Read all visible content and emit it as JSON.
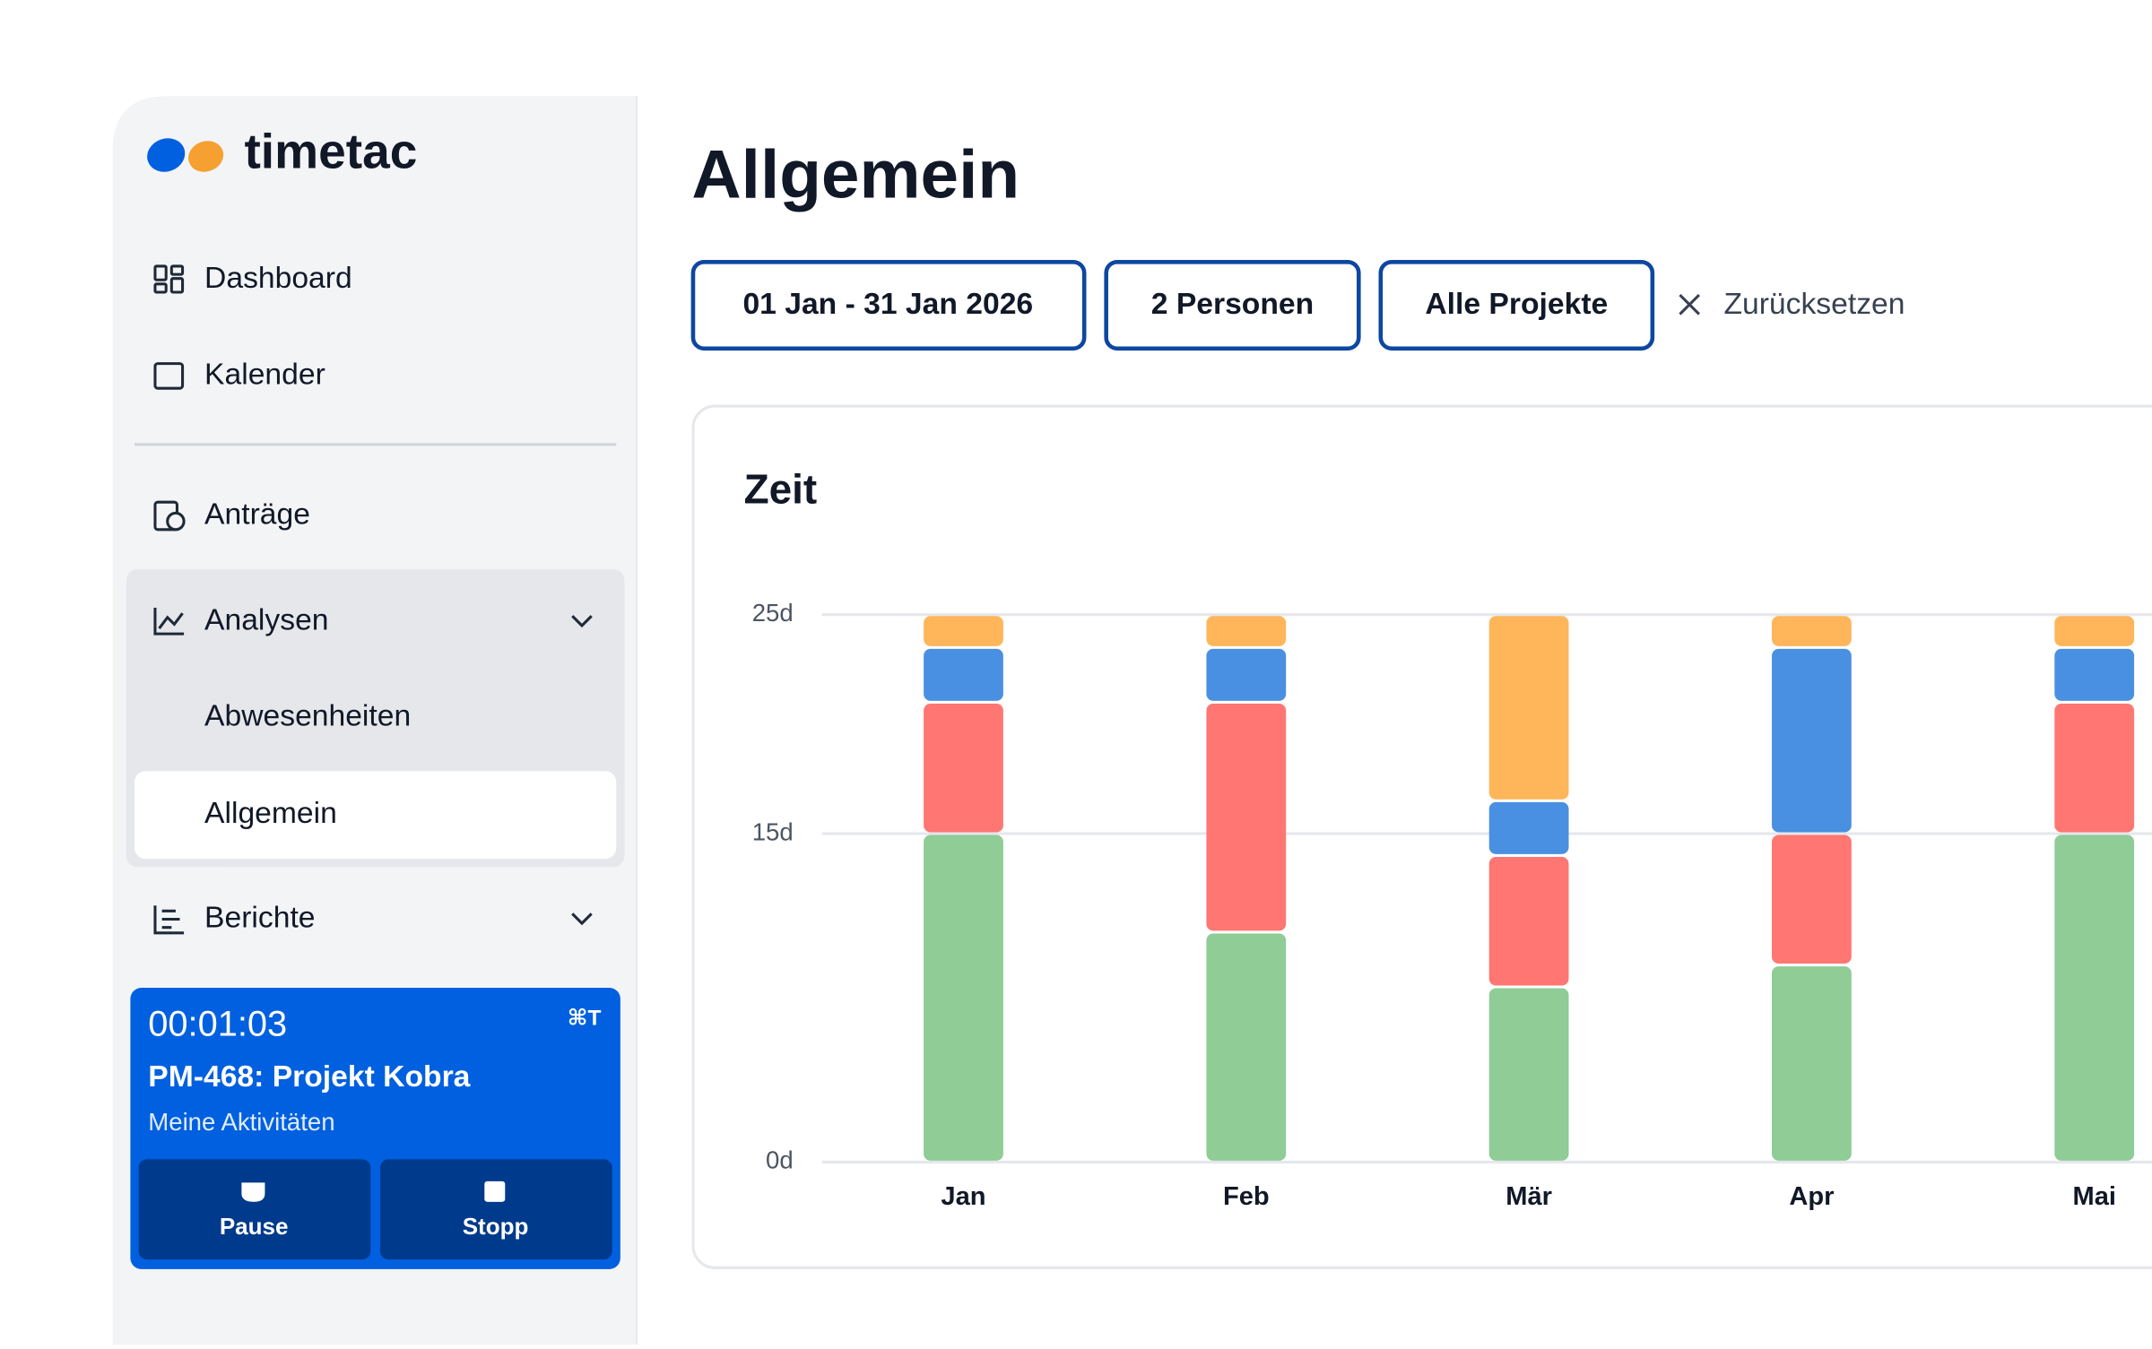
{
  "sidebar": {
    "brand": "timetac",
    "nav": [
      "Dashboard",
      "Kalender",
      "Anträge",
      "Analysen",
      "Abwesenheiten",
      "Allgemein",
      "Berichte"
    ],
    "timer": {
      "time": "00:01:03",
      "shortcut": "⌘T",
      "task": "PM-468: Projekt Kobra",
      "subtitle": "Meine Aktivitäten",
      "pause": "Pause",
      "stop": "Stopp"
    }
  },
  "header": {
    "title": "Allgemein",
    "filters": [
      "01 Jan - 31 Jan 2026",
      "2 Personen",
      "Alle Projekte"
    ],
    "reset": "Zurücksetzen"
  },
  "chart_data": {
    "type": "bar",
    "title": "Zeit",
    "categories": [
      "Jan",
      "Feb",
      "Mär",
      "Apr",
      "Mai"
    ],
    "series": [
      {
        "color": "#8fcc96",
        "values": [
          15,
          10.5,
          8,
          9,
          15
        ]
      },
      {
        "color": "#ff7672",
        "values": [
          6,
          10.5,
          6,
          6,
          6
        ]
      },
      {
        "color": "#4a90e2",
        "values": [
          2.5,
          2.5,
          2.5,
          8.5,
          2.5
        ]
      },
      {
        "color": "#ffb55a",
        "values": [
          1.5,
          1.5,
          8.5,
          1.5,
          1.5
        ]
      }
    ],
    "ylim": [
      0,
      25
    ],
    "yticks": [
      {
        "value": 0,
        "label": "0d"
      },
      {
        "value": 15,
        "label": "15d"
      },
      {
        "value": 25,
        "label": "25d"
      }
    ],
    "stacked": true,
    "grid": true
  }
}
